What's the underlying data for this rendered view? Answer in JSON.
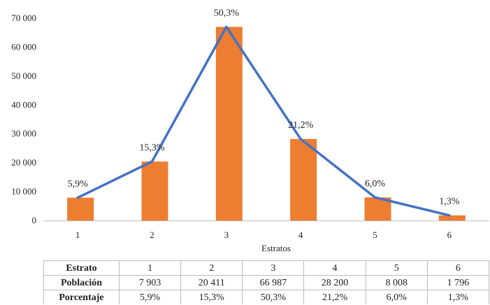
{
  "chart_data": {
    "type": "bar",
    "categories": [
      "1",
      "2",
      "3",
      "4",
      "5",
      "6"
    ],
    "series": [
      {
        "type": "bar",
        "values": [
          7903,
          20411,
          66987,
          28200,
          8008,
          1796
        ],
        "color": "#ed7d31"
      },
      {
        "type": "line",
        "values": [
          7903,
          20411,
          66987,
          28200,
          8008,
          1796
        ],
        "color": "#4472c4"
      }
    ],
    "data_labels": [
      "5,9%",
      "15,3%",
      "50,3%",
      "21,2%",
      "6,0%",
      "1,3%"
    ],
    "y_ticks": [
      "0",
      "10 000",
      "20 000",
      "30 000",
      "40 000",
      "50 000",
      "60 000",
      "70 000"
    ],
    "ylim": [
      0,
      70000
    ],
    "xlabel": "Estratos",
    "ylabel": "",
    "title": "",
    "grid": false,
    "legend": "none"
  },
  "table": {
    "rows": [
      {
        "label": "Estrato",
        "cells": [
          "1",
          "2",
          "3",
          "4",
          "5",
          "6"
        ]
      },
      {
        "label": "Población",
        "cells": [
          "7 903",
          "20 411",
          "66 987",
          "28 200",
          "8 008",
          "1 796"
        ]
      },
      {
        "label": "Porcentaje",
        "cells": [
          "5,9%",
          "15,3%",
          "50,3%",
          "21,2%",
          "6,0%",
          "1,3%"
        ]
      }
    ]
  }
}
